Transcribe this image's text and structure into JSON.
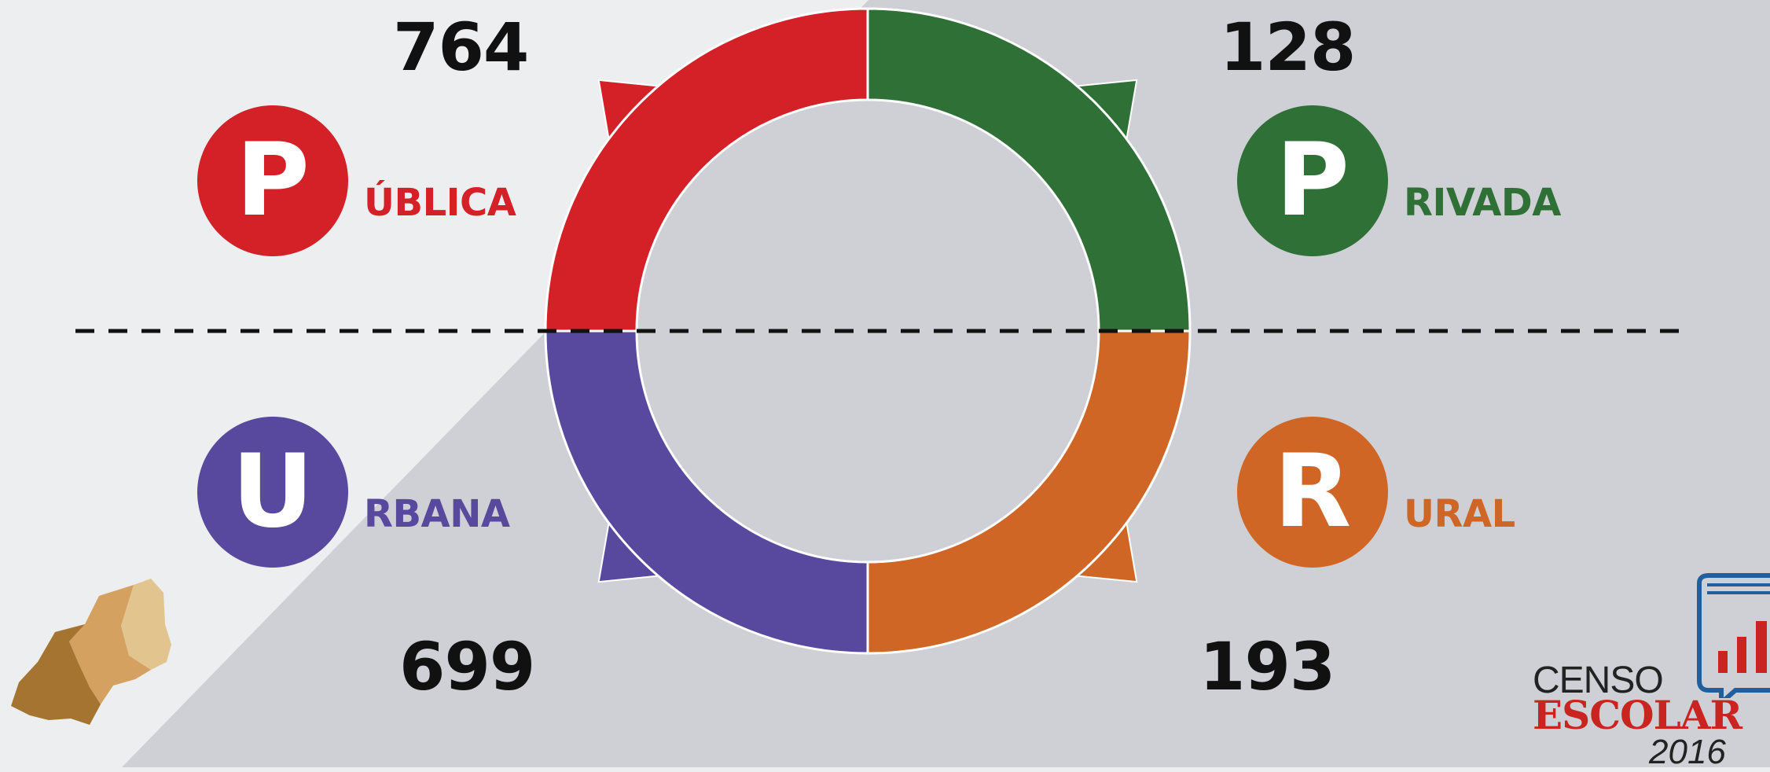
{
  "chart_data": {
    "type": "donut",
    "title": "",
    "segments": [
      {
        "category": "Pública",
        "value": 764,
        "color": "#d42027",
        "group": "dependencia"
      },
      {
        "category": "Privada",
        "value": 128,
        "color": "#2f7037",
        "group": "dependencia"
      },
      {
        "category": "Rural",
        "value": 193,
        "color": "#cf6626",
        "group": "localizacao"
      },
      {
        "category": "Urbana",
        "value": 699,
        "color": "#58499e",
        "group": "localizacao"
      }
    ]
  },
  "publica": {
    "value": "764",
    "letter": "P",
    "rest": "ÚBLICA",
    "color": "#d42027"
  },
  "privada": {
    "value": "128",
    "letter": "P",
    "rest": "RIVADA",
    "color": "#2f7037"
  },
  "urbana": {
    "value": "699",
    "letter": "U",
    "rest": "RBANA",
    "color": "#58499e"
  },
  "rural": {
    "value": "193",
    "letter": "R",
    "rest": "URAL",
    "color": "#cf6626"
  },
  "logo": {
    "line1": "CENSO",
    "line2": "ESCOLAR",
    "year": "2016"
  }
}
